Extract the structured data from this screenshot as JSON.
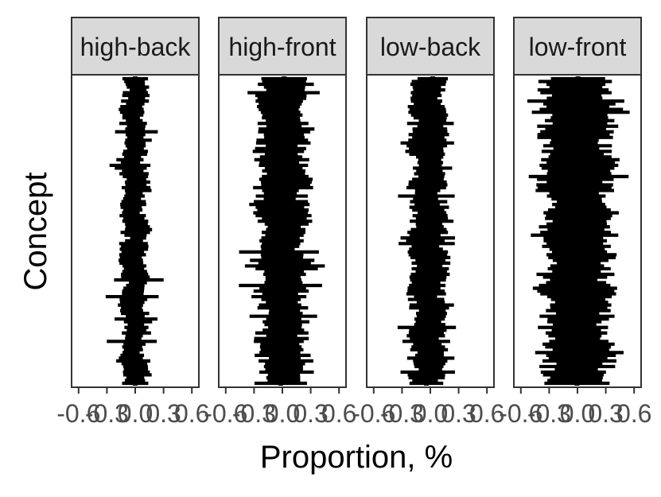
{
  "chart_data": {
    "type": "horizontal-errorbar-facets",
    "title": "",
    "xlabel": "Proportion, %",
    "ylabel": "Concept",
    "xlim": [
      -0.6,
      0.6
    ],
    "x_ticks": [
      -0.6,
      -0.3,
      0.0,
      0.3,
      0.6
    ],
    "x_tick_labels": [
      "-0.6",
      "-0.3",
      "0.0",
      "0.3",
      "0.6"
    ],
    "y_tick_labels_shown": false,
    "grid": false,
    "legend": "none",
    "mark_color": "#000000",
    "strip_fill": "#d9d9d9",
    "n_concepts_per_panel": 110,
    "panels": [
      {
        "name": "high-back",
        "center": -0.01,
        "typical_half_width": 0.13,
        "max_half_width": 0.29
      },
      {
        "name": "high-front",
        "center": 0.0,
        "typical_half_width": 0.25,
        "max_half_width": 0.45
      },
      {
        "name": "low-back",
        "center": -0.02,
        "typical_half_width": 0.18,
        "max_half_width": 0.32
      },
      {
        "name": "low-front",
        "center": 0.0,
        "typical_half_width": 0.35,
        "max_half_width": 0.55
      }
    ]
  }
}
